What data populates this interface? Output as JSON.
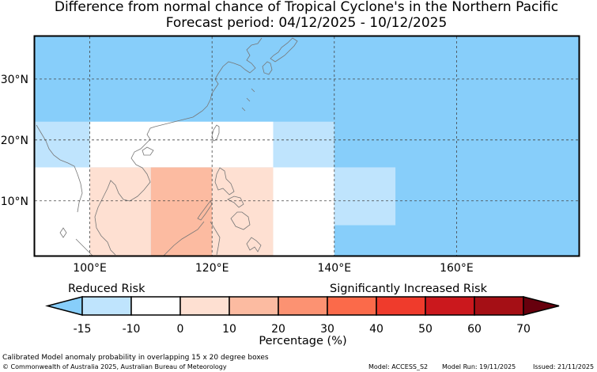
{
  "title": {
    "line1": "Difference from normal chance of Tropical Cyclone's in the Northern Pacific",
    "line2": "Forecast period: 04/12/2025 - 10/12/2025"
  },
  "map": {
    "lon_range": [
      91,
      180
    ],
    "lat_range": [
      1,
      37
    ],
    "x_ticks": [
      {
        "value": 100,
        "label": "100°E"
      },
      {
        "value": 120,
        "label": "120°E"
      },
      {
        "value": 140,
        "label": "140°E"
      },
      {
        "value": 160,
        "label": "160°E"
      }
    ],
    "y_ticks": [
      {
        "value": 10,
        "label": "10°N"
      },
      {
        "value": 20,
        "label": "20°N"
      },
      {
        "value": 30,
        "label": "30°N"
      }
    ],
    "background_color": "#87cefa",
    "cells": [
      {
        "lon": [
          91,
          100
        ],
        "lat": [
          15.5,
          23
        ],
        "color": "#bfe4fd"
      },
      {
        "lon": [
          91,
          100
        ],
        "lat": [
          1,
          15.5
        ],
        "color": "#ffffff"
      },
      {
        "lon": [
          100,
          130
        ],
        "lat": [
          15.5,
          23
        ],
        "color": "#ffffff"
      },
      {
        "lon": [
          100,
          110
        ],
        "lat": [
          1,
          15.5
        ],
        "color": "#fee0d2"
      },
      {
        "lon": [
          110,
          120
        ],
        "lat": [
          1,
          15.5
        ],
        "color": "#fcbba1"
      },
      {
        "lon": [
          120,
          130
        ],
        "lat": [
          1,
          15.5
        ],
        "color": "#fee0d2"
      },
      {
        "lon": [
          130,
          140
        ],
        "lat": [
          15.5,
          23
        ],
        "color": "#bfe4fd"
      },
      {
        "lon": [
          130,
          140
        ],
        "lat": [
          1,
          15.5
        ],
        "color": "#ffffff"
      },
      {
        "lon": [
          140,
          150
        ],
        "lat": [
          6,
          15.5
        ],
        "color": "#bfe4fd"
      }
    ],
    "coastline_color": "#777777",
    "grid_color": "#444444"
  },
  "colorbar": {
    "ticks": [
      -15,
      -10,
      0,
      10,
      20,
      30,
      40,
      50,
      60,
      70
    ],
    "colors": [
      "#87cefa",
      "#bfe4fd",
      "#ffffff",
      "#fee0d2",
      "#fcbba1",
      "#fc9272",
      "#fb6a4a",
      "#ef3b2c",
      "#cb181d",
      "#a50f15",
      "#67000d"
    ],
    "xlabel": "Percentage (%)",
    "reduced_label": "Reduced Risk",
    "increased_label": "Significantly Increased Risk"
  },
  "footer": {
    "note": "Calibrated Model anomaly probability in overlapping 15 x 20 degree boxes",
    "copyright": "© Commonwealth of Australia 2025, Australian Bureau of Meteorology",
    "model": "Model: ACCESS_S2",
    "model_run": "Model Run: 19/11/2025",
    "issued": "Issued: 21/11/2025"
  }
}
